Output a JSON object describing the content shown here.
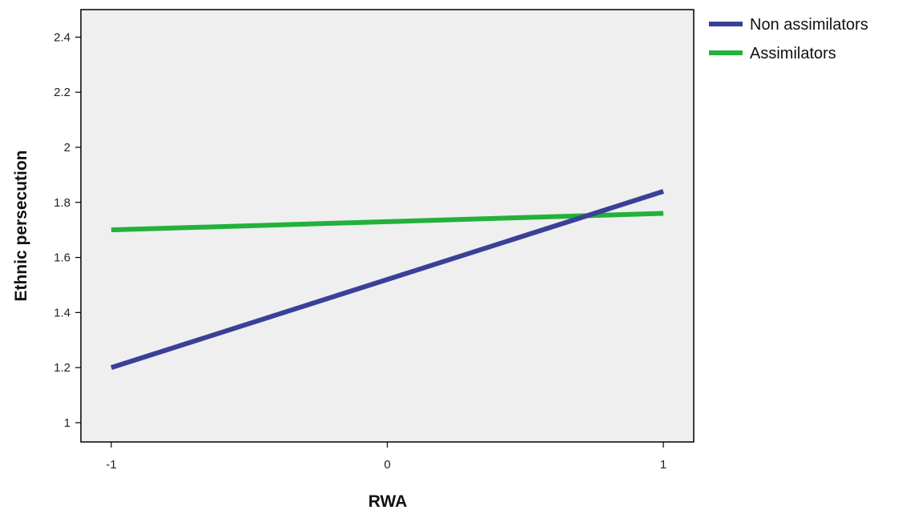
{
  "chart_data": {
    "type": "line",
    "title": "",
    "xlabel": "RWA",
    "ylabel": "Ethnic persecution",
    "x": [
      -1,
      1
    ],
    "x_ticks": [
      "-1",
      "0",
      "1"
    ],
    "x_tick_values": [
      -1,
      0,
      1
    ],
    "y_ticks": [
      "1",
      "1.2",
      "1.4",
      "1.6",
      "1.8",
      "2",
      "2.2",
      "2.4"
    ],
    "y_tick_values": [
      1,
      1.2,
      1.4,
      1.6,
      1.8,
      2,
      2.2,
      2.4
    ],
    "xlim": [
      -1.11,
      1.11
    ],
    "ylim": [
      0.93,
      2.5
    ],
    "series": [
      {
        "name": "Non assimilators",
        "color": "#3a3f98",
        "values": [
          1.2,
          1.84
        ]
      },
      {
        "name": "Assimilators",
        "color": "#22b13a",
        "values": [
          1.7,
          1.76
        ]
      }
    ],
    "legend_position": "right",
    "background": "#efefef",
    "grid": false
  }
}
